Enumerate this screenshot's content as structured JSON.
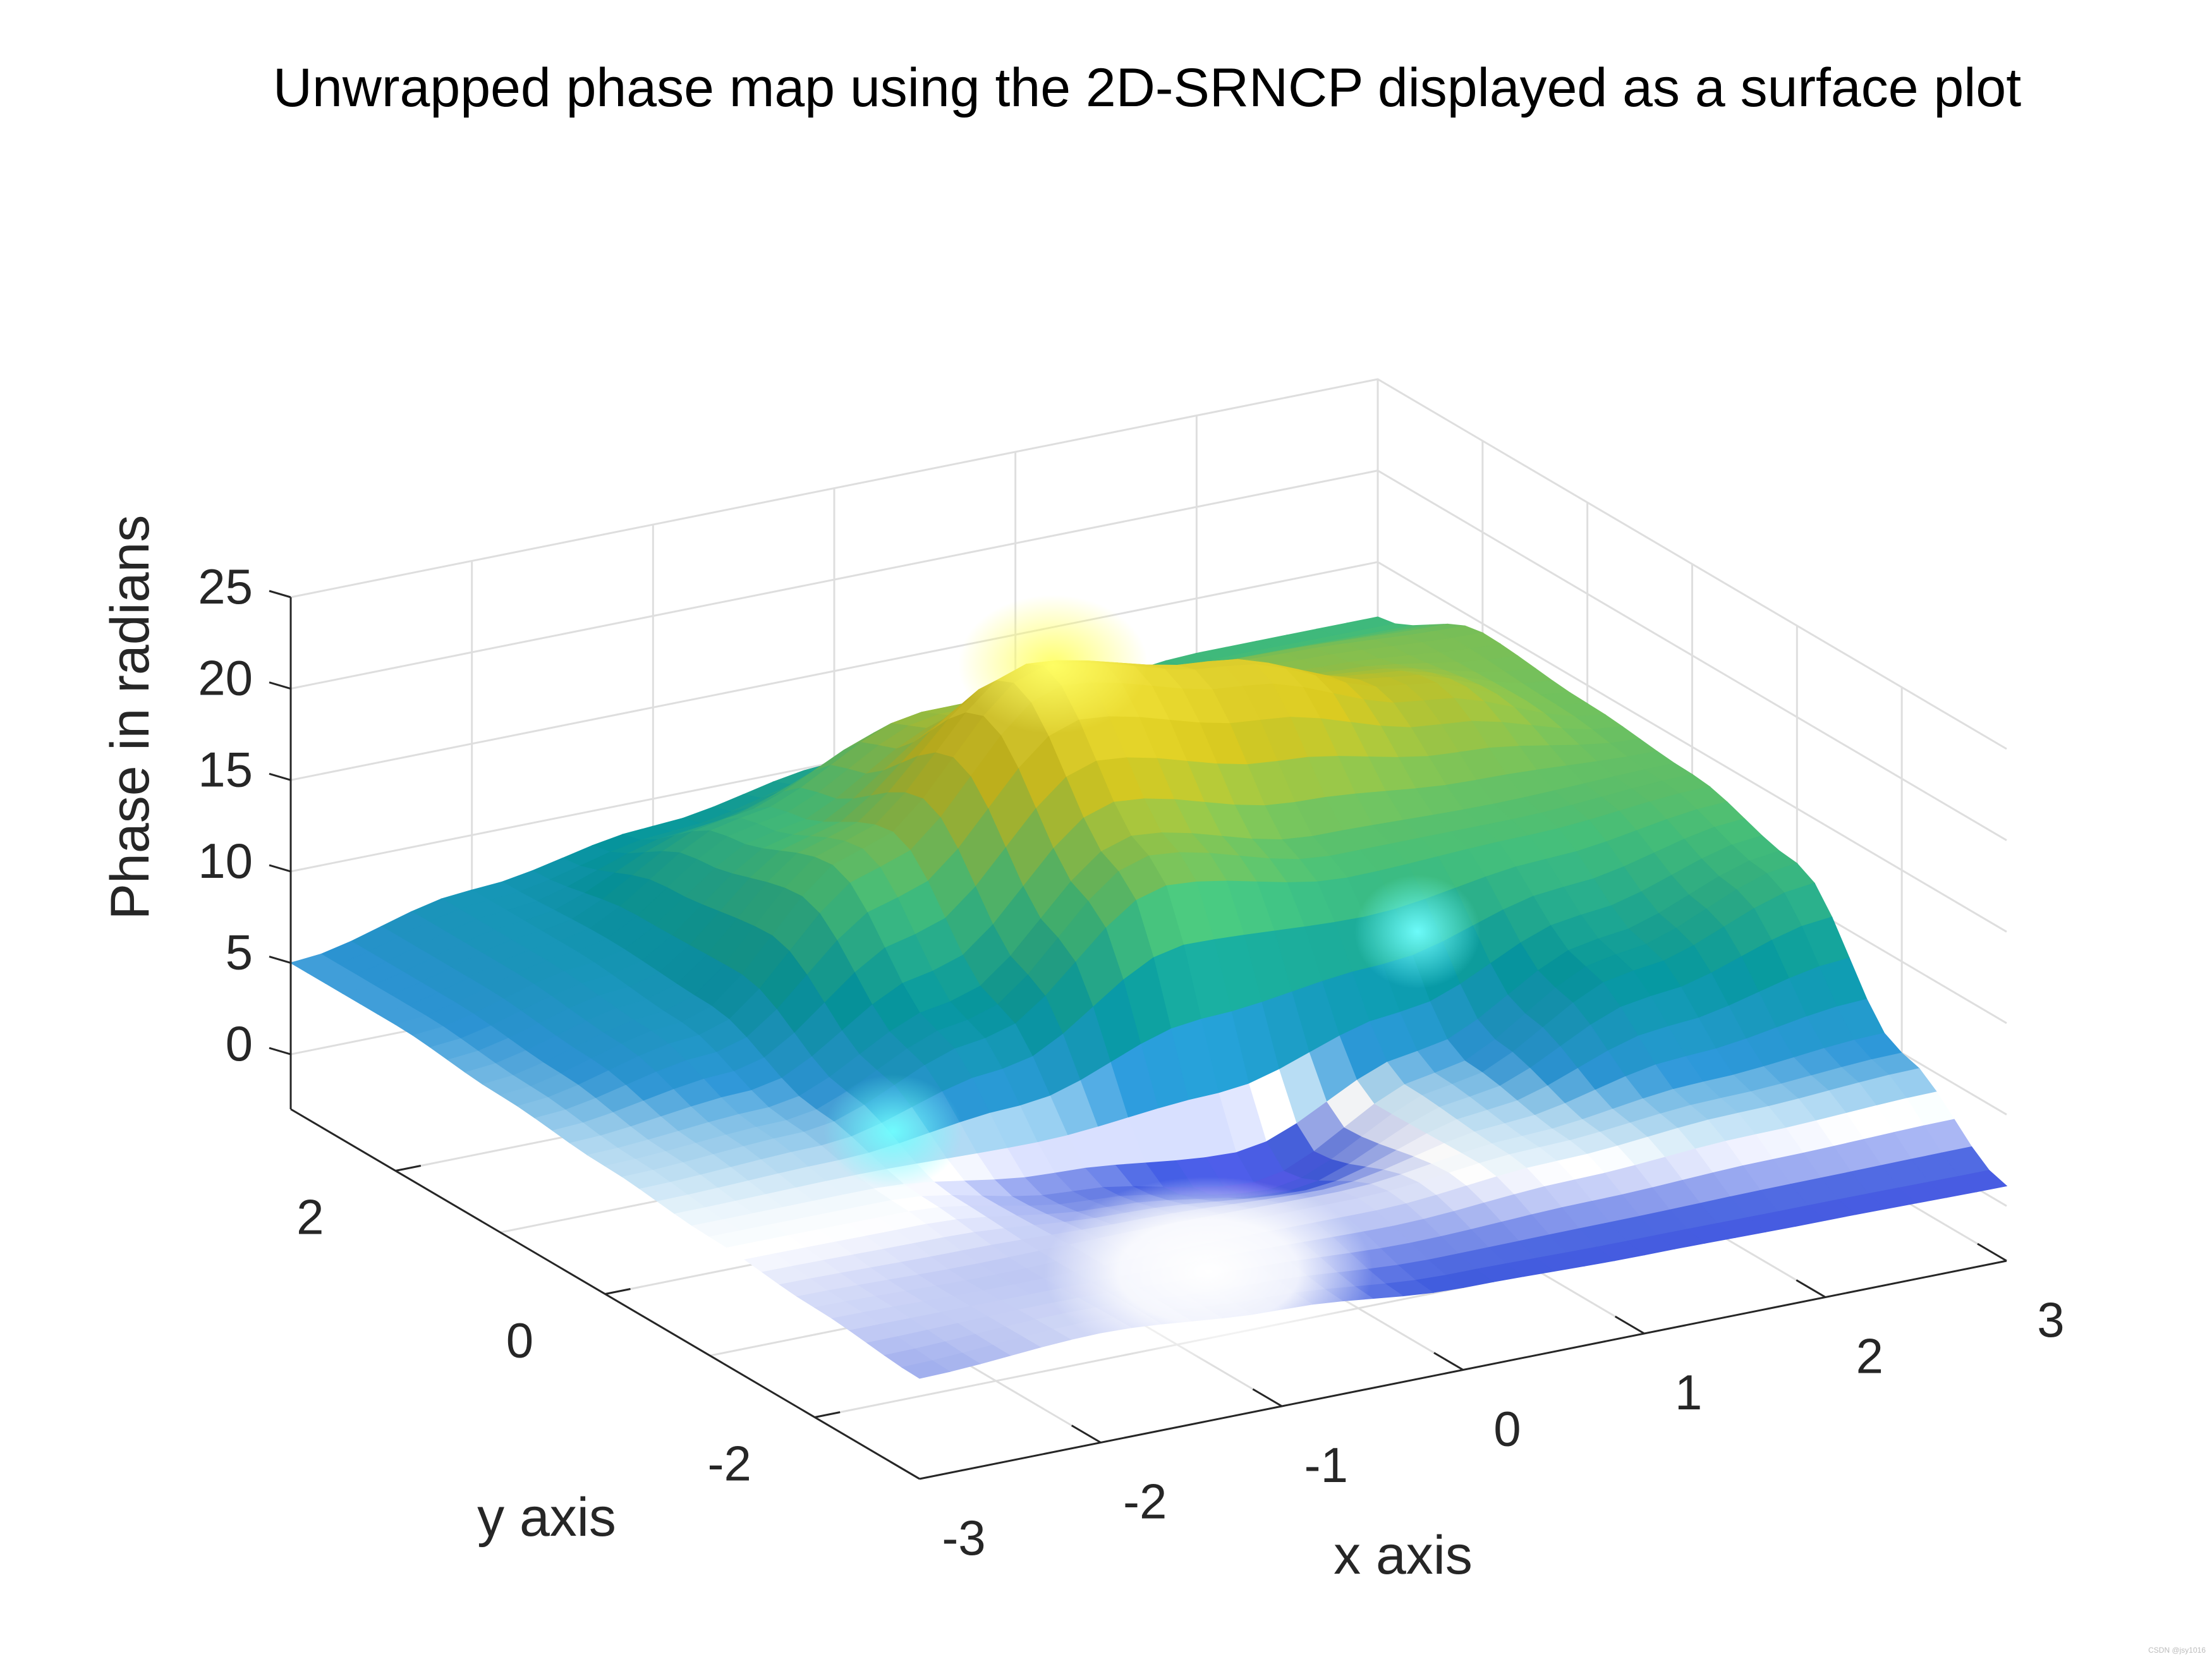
{
  "chart_data": {
    "type": "surface",
    "title": "Unwrapped phase map using the 2D-SRNCP displayed as a surface plot",
    "xlabel": "x axis",
    "ylabel": "y axis",
    "zlabel": "Phase in radians",
    "xlim": [
      -3,
      3
    ],
    "ylim": [
      -3,
      3
    ],
    "zlim": [
      -3,
      25
    ],
    "xticks": [
      "-3",
      "-2",
      "-1",
      "0",
      "1",
      "2",
      "3"
    ],
    "yticks": [
      "-2",
      "0",
      "2"
    ],
    "zticks": [
      "0",
      "5",
      "10",
      "15",
      "20",
      "25"
    ],
    "grid": true,
    "colormap": "parula-like (blue to white to teal to yellow)",
    "colors": [
      "#7b5cff",
      "#3f5bd8",
      "#ffffff",
      "#1c9fc8",
      "#069aa0",
      "#56c985",
      "#d8c00a",
      "#fff04d"
    ],
    "surface_samples": {
      "x": [
        -3,
        -2,
        -1,
        0,
        1,
        2,
        3
      ],
      "y": [
        -3,
        -2,
        -1,
        0,
        1,
        2,
        3
      ],
      "z": [
        [
          2.5,
          3.0,
          2.3,
          1.5,
          1.3,
          1.2,
          1.1
        ],
        [
          3.0,
          2.8,
          3.0,
          3.0,
          3.8,
          4.5,
          5.0
        ],
        [
          3.5,
          3.5,
          2.0,
          0.5,
          4.5,
          9.0,
          12.0
        ],
        [
          4.0,
          4.5,
          8.0,
          15.0,
          13.0,
          13.0,
          13.5
        ],
        [
          4.5,
          6.5,
          14.0,
          22.0,
          20.0,
          17.0,
          14.0
        ],
        [
          5.0,
          7.0,
          12.0,
          16.0,
          16.0,
          15.0,
          14.5
        ],
        [
          5.0,
          7.0,
          8.5,
          10.0,
          11.0,
          12.0,
          12.0
        ]
      ]
    },
    "watermark": "CSDN @jsy1016"
  }
}
